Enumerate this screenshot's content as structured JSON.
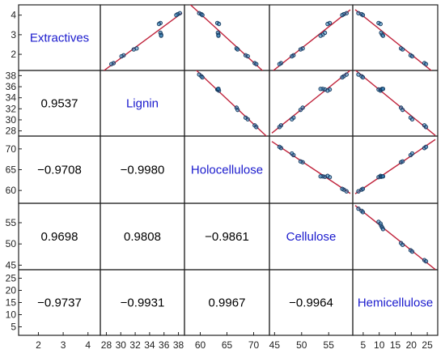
{
  "chart_data": {
    "type": "scatter",
    "variables": [
      {
        "name": "Extractives",
        "range": [
          1.3,
          4.4
        ],
        "ticks": [
          "2",
          "3",
          "4"
        ],
        "tick_values": [
          2,
          3,
          4
        ],
        "y_ticks": [
          "2",
          "3",
          "4"
        ],
        "y_tick_values": [
          2,
          3,
          4
        ]
      },
      {
        "name": "Lignin",
        "range": [
          27.5,
          38.5
        ],
        "ticks": [
          "28",
          "30",
          "32",
          "34",
          "36",
          "38"
        ],
        "tick_values": [
          28,
          30,
          32,
          34,
          36,
          38
        ],
        "y_ticks": [
          "28",
          "30",
          "32",
          "34",
          "36",
          "38"
        ],
        "y_tick_values": [
          28,
          30,
          32,
          34,
          36,
          38
        ]
      },
      {
        "name": "Holocellulose",
        "range": [
          57.5,
          72.5
        ],
        "ticks": [
          "60",
          "65",
          "70"
        ],
        "tick_values": [
          60,
          65,
          70
        ],
        "y_ticks": [
          "60",
          "65",
          "70"
        ],
        "y_tick_values": [
          60,
          65,
          70
        ]
      },
      {
        "name": "Cellulose",
        "range": [
          44.5,
          59
        ],
        "ticks": [
          "45",
          "50",
          "55"
        ],
        "tick_values": [
          45,
          50,
          55
        ],
        "y_ticks": [
          "45",
          "50",
          "55"
        ],
        "y_tick_values": [
          45,
          50,
          55
        ]
      },
      {
        "name": "Hemicellulose",
        "range": [
          2.5,
          27.5
        ],
        "ticks": [
          "5",
          "10",
          "15",
          "20",
          "25"
        ],
        "tick_values": [
          5,
          10,
          15,
          20,
          25
        ],
        "y_ticks": [
          "5",
          "10",
          "15",
          "20",
          "25"
        ],
        "y_tick_values": [
          5,
          10,
          15,
          20,
          25
        ]
      }
    ],
    "observations": [
      [
        4.1,
        38.2,
        59.8,
        58.3,
        3.5
      ],
      [
        4.05,
        37.9,
        60.2,
        57.8,
        4.5
      ],
      [
        4.0,
        37.7,
        60.4,
        57.5,
        4.9
      ],
      [
        3.6,
        35.5,
        63.2,
        55.2,
        9.8
      ],
      [
        3.55,
        35.3,
        63.5,
        54.8,
        10.4
      ],
      [
        3.1,
        35.5,
        63.3,
        54.3,
        10.6
      ],
      [
        3.0,
        35.6,
        63.4,
        53.9,
        10.9
      ],
      [
        2.95,
        35.6,
        63.4,
        53.5,
        11.2
      ],
      [
        2.3,
        32.2,
        66.8,
        50.2,
        16.8
      ],
      [
        2.25,
        31.8,
        67.0,
        49.8,
        17.3
      ],
      [
        1.95,
        30.4,
        68.5,
        48.5,
        19.8
      ],
      [
        1.9,
        30.1,
        68.9,
        48.2,
        20.3
      ],
      [
        1.55,
        29.0,
        70.2,
        46.2,
        24.1
      ],
      [
        1.5,
        28.7,
        70.5,
        45.9,
        24.6
      ]
    ],
    "correlations": [
      {
        "row": 1,
        "col": 0,
        "value": "0.9537"
      },
      {
        "row": 2,
        "col": 0,
        "value": "−0.9708"
      },
      {
        "row": 2,
        "col": 1,
        "value": "−0.9980"
      },
      {
        "row": 3,
        "col": 0,
        "value": "0.9698"
      },
      {
        "row": 3,
        "col": 1,
        "value": "0.9808"
      },
      {
        "row": 3,
        "col": 2,
        "value": "−0.9861"
      },
      {
        "row": 4,
        "col": 0,
        "value": "−0.9737"
      },
      {
        "row": 4,
        "col": 1,
        "value": "−0.9931"
      },
      {
        "row": 4,
        "col": 2,
        "value": "0.9967"
      },
      {
        "row": 4,
        "col": 3,
        "value": "−0.9964"
      }
    ],
    "colors": {
      "marker_face": "#2f7fb8",
      "marker_edge": "#12355a",
      "line": "#c0243c",
      "label": "#1a1acd",
      "frame": "#222222"
    },
    "marker": "ring",
    "grid": false,
    "legend": "none"
  }
}
